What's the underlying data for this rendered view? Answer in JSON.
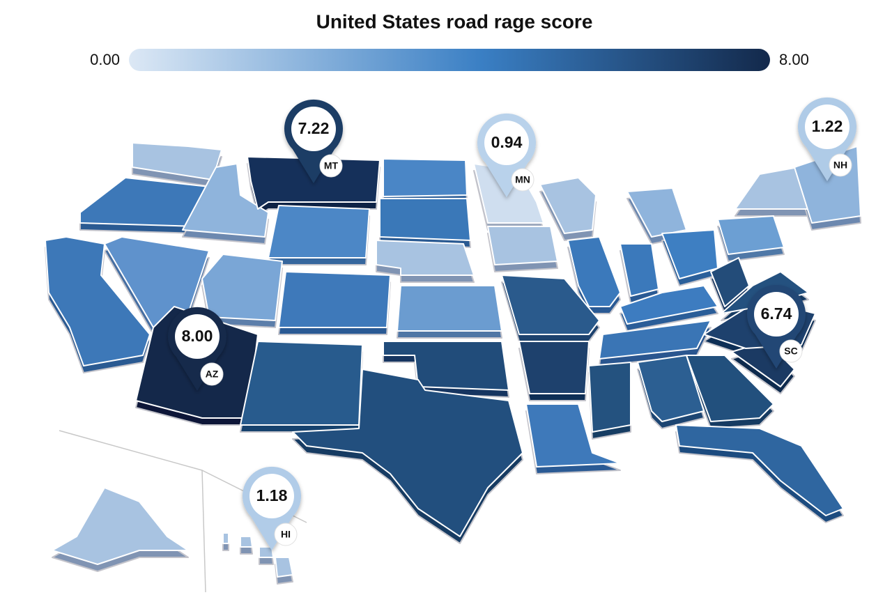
{
  "title": "United States road rage score",
  "scale": {
    "min": "0.00",
    "max": "8.00"
  },
  "pins": [
    {
      "state": "MT",
      "score": "7.22"
    },
    {
      "state": "MN",
      "score": "0.94"
    },
    {
      "state": "NH",
      "score": "1.22"
    },
    {
      "state": "AZ",
      "score": "8.00"
    },
    {
      "state": "SC",
      "score": "6.74"
    },
    {
      "state": "HI",
      "score": "1.18"
    }
  ]
}
